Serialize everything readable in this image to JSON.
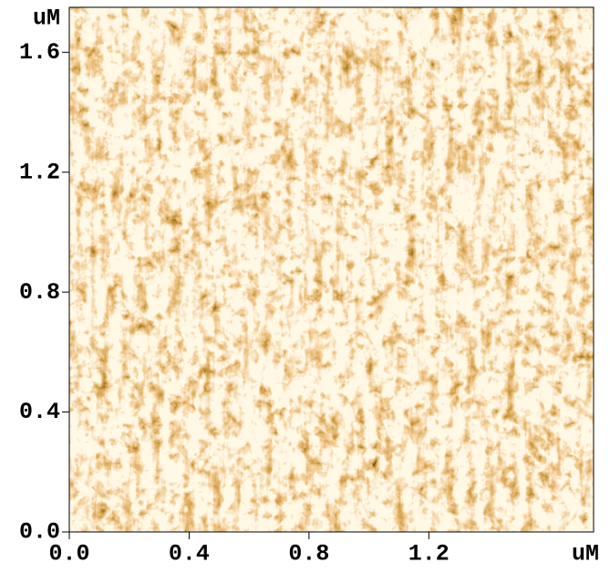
{
  "chart_data": {
    "type": "image",
    "x_unit": "uM",
    "y_unit": "uM",
    "xlim": [
      0,
      1.75
    ],
    "ylim": [
      0,
      1.75
    ],
    "xticks": [
      {
        "value": 0,
        "label": "0.0"
      },
      0.4,
      0.8,
      1.2
    ],
    "yticks": [
      {
        "value": 0,
        "label": "0.0"
      },
      0.4,
      0.8,
      1.2,
      1.6
    ],
    "colormap": [
      "#2a1200",
      "#a85c10",
      "#e8a050",
      "#fff0c8"
    ]
  }
}
